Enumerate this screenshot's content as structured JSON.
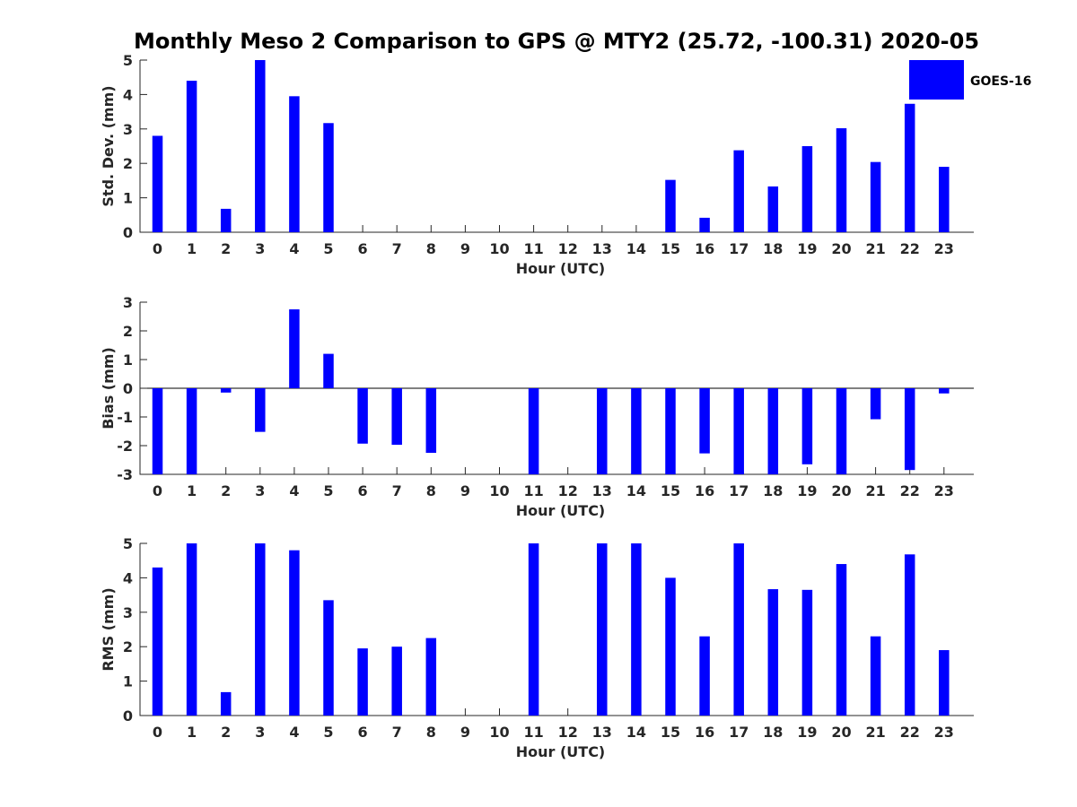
{
  "chart_data": [
    {
      "type": "bar",
      "title": "Monthly Meso 2 Comparison to GPS @ MTY2 (25.72, -100.31) 2020-05",
      "xlabel": "Hour (UTC)",
      "ylabel": "Std. Dev. (mm)",
      "ylim": [
        0,
        5
      ],
      "yticks": [
        "0",
        "1",
        "2",
        "3",
        "4",
        "5"
      ],
      "categories": [
        "0",
        "1",
        "2",
        "3",
        "4",
        "5",
        "6",
        "7",
        "8",
        "9",
        "10",
        "11",
        "12",
        "13",
        "14",
        "15",
        "16",
        "17",
        "18",
        "19",
        "20",
        "21",
        "22",
        "23"
      ],
      "series": [
        {
          "name": "GOES-16",
          "color": "#0000ff",
          "values": [
            2.8,
            4.4,
            0.68,
            5.0,
            3.95,
            3.17,
            null,
            null,
            null,
            null,
            null,
            null,
            null,
            null,
            null,
            1.52,
            0.42,
            2.38,
            1.33,
            2.5,
            3.02,
            2.04,
            3.73,
            1.9
          ]
        }
      ],
      "legend": {
        "position": "top-right",
        "entries": [
          "GOES-16"
        ]
      },
      "grid": false
    },
    {
      "type": "bar",
      "xlabel": "Hour (UTC)",
      "ylabel": "Bias (mm)",
      "ylim": [
        -3,
        3
      ],
      "yticks": [
        "-3",
        "-2",
        "-1",
        "0",
        "1",
        "2",
        "3"
      ],
      "categories": [
        "0",
        "1",
        "2",
        "3",
        "4",
        "5",
        "6",
        "7",
        "8",
        "9",
        "10",
        "11",
        "12",
        "13",
        "14",
        "15",
        "16",
        "17",
        "18",
        "19",
        "20",
        "21",
        "22",
        "23"
      ],
      "series": [
        {
          "name": "GOES-16",
          "color": "#0000ff",
          "values": [
            -3.0,
            -3.0,
            -0.15,
            -1.52,
            2.75,
            1.2,
            -1.93,
            -1.97,
            -2.25,
            null,
            null,
            -3.0,
            null,
            -3.0,
            -3.0,
            -3.0,
            -2.27,
            -3.0,
            -3.0,
            -2.65,
            -3.0,
            -1.08,
            -2.85,
            -0.18
          ]
        }
      ],
      "grid": false
    },
    {
      "type": "bar",
      "xlabel": "Hour (UTC)",
      "ylabel": "RMS (mm)",
      "ylim": [
        0,
        5
      ],
      "yticks": [
        "0",
        "1",
        "2",
        "3",
        "4",
        "5"
      ],
      "categories": [
        "0",
        "1",
        "2",
        "3",
        "4",
        "5",
        "6",
        "7",
        "8",
        "9",
        "10",
        "11",
        "12",
        "13",
        "14",
        "15",
        "16",
        "17",
        "18",
        "19",
        "20",
        "21",
        "22",
        "23"
      ],
      "series": [
        {
          "name": "GOES-16",
          "color": "#0000ff",
          "values": [
            4.3,
            5.0,
            0.68,
            5.0,
            4.8,
            3.35,
            1.95,
            2.0,
            2.25,
            null,
            null,
            5.0,
            null,
            5.0,
            5.0,
            4.0,
            2.3,
            5.0,
            3.67,
            3.65,
            4.4,
            2.3,
            4.68,
            1.9
          ]
        }
      ],
      "grid": false
    }
  ]
}
